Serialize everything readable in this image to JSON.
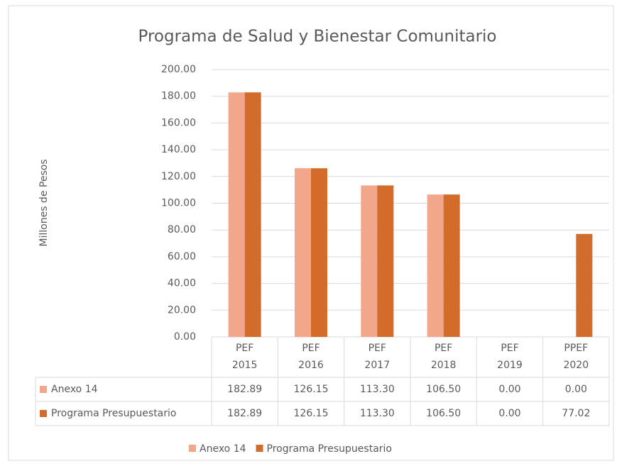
{
  "chart_data": {
    "type": "bar",
    "title": "Programa de Salud y Bienestar Comunitario",
    "y_label": "Millones de Pesos",
    "categories": [
      "PEF 2015",
      "PEF 2016",
      "PEF 2017",
      "PEF 2018",
      "PEF 2019",
      "PPEF 2020"
    ],
    "series": [
      {
        "name": "Anexo 14",
        "color": "#f2a68a",
        "values": [
          182.89,
          126.15,
          113.3,
          106.5,
          0,
          0
        ],
        "value_labels": [
          "182.89",
          "126.15",
          "113.30",
          "106.50",
          "0.00",
          "0.00"
        ]
      },
      {
        "name": "Programa Presupuestario",
        "color": "#d36b2b",
        "values": [
          182.89,
          126.15,
          113.3,
          106.5,
          0,
          77.02
        ],
        "value_labels": [
          "182.89",
          "126.15",
          "113.30",
          "106.50",
          "0.00",
          "77.02"
        ]
      }
    ],
    "ylim": [
      0,
      200
    ],
    "yticks": [
      {
        "value": 0,
        "label": "0.00"
      },
      {
        "value": 20,
        "label": "20.00"
      },
      {
        "value": 40,
        "label": "40.00"
      },
      {
        "value": 60,
        "label": "60.00"
      },
      {
        "value": 80,
        "label": "80.00"
      },
      {
        "value": 100,
        "label": "100.00"
      },
      {
        "value": 120,
        "label": "120.00"
      },
      {
        "value": 140,
        "label": "140.00"
      },
      {
        "value": 160,
        "label": "160.00"
      },
      {
        "value": 180,
        "label": "180.00"
      },
      {
        "value": 200,
        "label": "200.00"
      }
    ],
    "grid": true,
    "legend": "bottom"
  }
}
